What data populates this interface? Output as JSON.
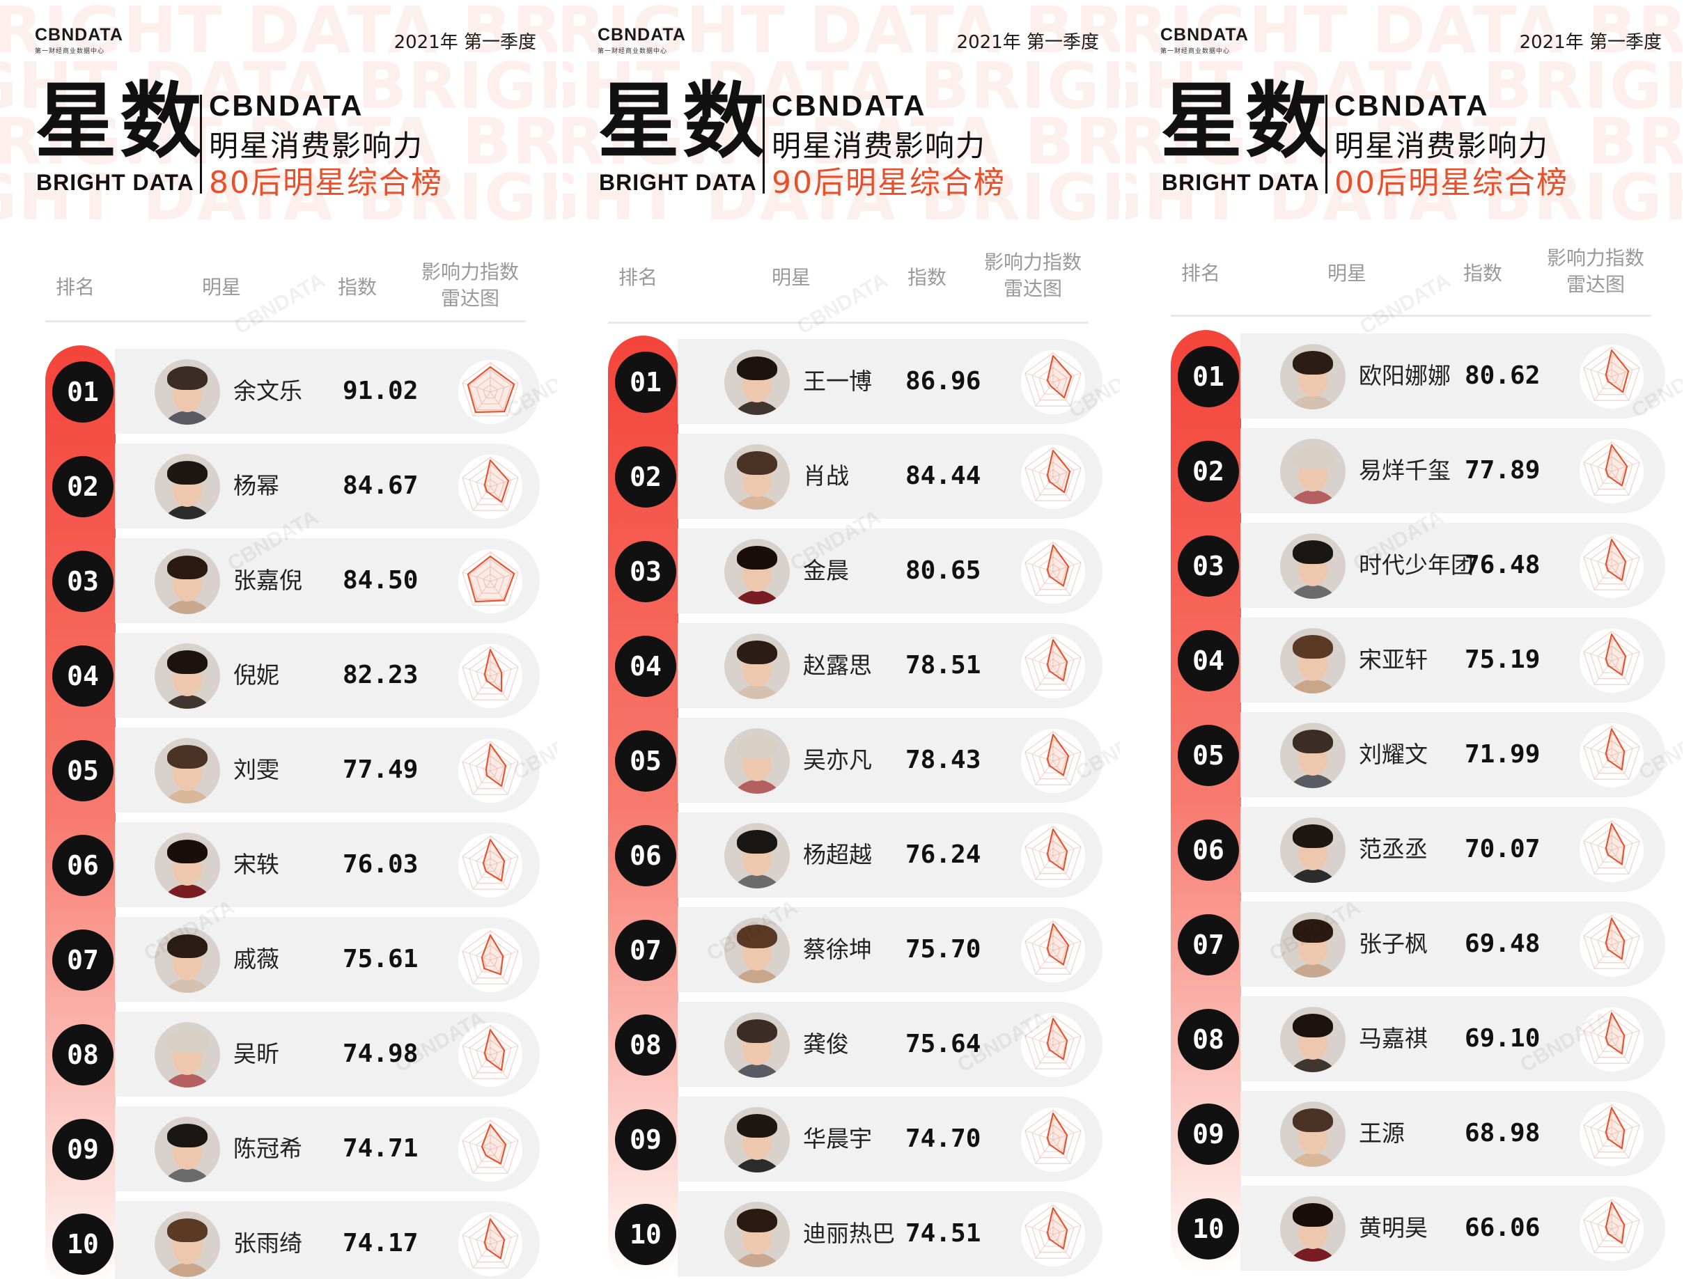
{
  "logo": {
    "name": "CBNDATA",
    "sub": "第一财经商业数据中心"
  },
  "season": "2021年 第一季度",
  "big_title": "星数",
  "bright_label": "BRIGHT DATA",
  "brand": "CBNDATA",
  "subtitle": "明星消费影响力",
  "background_text": "RIGHT DATA BRIGHT",
  "watermark": "CBNDATA",
  "headers": {
    "rank": "排名",
    "star": "明星",
    "index": "指数",
    "radar_line1": "影响力指数",
    "radar_line2": "雷达图"
  },
  "colors": {
    "accent": "#e8502b",
    "rank_bar": "#f4443a",
    "rank_circle": "#111111",
    "row_bg": "#f1f1f1"
  },
  "icons": {
    "avatar": "person-photo-icon",
    "radar": "radar-chart-icon"
  },
  "panels": [
    {
      "title": "80后明星综合榜",
      "rows": [
        {
          "rank": "01",
          "name": "余文乐",
          "score": "91.02",
          "radar": [
            0.85,
            0.85,
            0.82,
            0.85,
            0.8
          ]
        },
        {
          "rank": "02",
          "name": "杨幂",
          "score": "84.67",
          "radar": [
            0.9,
            0.65,
            0.65,
            0.2,
            0.2
          ]
        },
        {
          "rank": "03",
          "name": "张嘉倪",
          "score": "84.50",
          "radar": [
            0.85,
            0.85,
            0.8,
            0.85,
            0.8
          ]
        },
        {
          "rank": "04",
          "name": "倪妮",
          "score": "82.23",
          "radar": [
            0.9,
            0.4,
            0.65,
            0.2,
            0.2
          ]
        },
        {
          "rank": "05",
          "name": "刘雯",
          "score": "77.49",
          "radar": [
            0.9,
            0.55,
            0.65,
            0.2,
            0.15
          ]
        },
        {
          "rank": "06",
          "name": "宋轶",
          "score": "76.03",
          "radar": [
            0.88,
            0.5,
            0.65,
            0.25,
            0.25
          ]
        },
        {
          "rank": "07",
          "name": "戚薇",
          "score": "75.61",
          "radar": [
            0.85,
            0.45,
            0.6,
            0.35,
            0.3
          ]
        },
        {
          "rank": "08",
          "name": "吴昕",
          "score": "74.98",
          "radar": [
            0.85,
            0.5,
            0.65,
            0.2,
            0.2
          ]
        },
        {
          "rank": "09",
          "name": "陈冠希",
          "score": "74.71",
          "radar": [
            0.85,
            0.55,
            0.6,
            0.25,
            0.3
          ]
        },
        {
          "rank": "10",
          "name": "张雨绮",
          "score": "74.17",
          "radar": [
            0.85,
            0.5,
            0.6,
            0.2,
            0.2
          ]
        }
      ]
    },
    {
      "title": "90后明星综合榜",
      "rows": [
        {
          "rank": "01",
          "name": "王一博",
          "score": "86.96",
          "radar": [
            0.9,
            0.65,
            0.65,
            0.15,
            0.2
          ]
        },
        {
          "rank": "02",
          "name": "肖战",
          "score": "84.44",
          "radar": [
            0.9,
            0.6,
            0.65,
            0.2,
            0.2
          ]
        },
        {
          "rank": "03",
          "name": "金晨",
          "score": "80.65",
          "radar": [
            0.9,
            0.55,
            0.6,
            0.2,
            0.2
          ]
        },
        {
          "rank": "04",
          "name": "赵露思",
          "score": "78.51",
          "radar": [
            0.9,
            0.5,
            0.6,
            0.2,
            0.2
          ]
        },
        {
          "rank": "05",
          "name": "吴亦凡",
          "score": "78.43",
          "radar": [
            0.9,
            0.55,
            0.6,
            0.2,
            0.2
          ]
        },
        {
          "rank": "06",
          "name": "杨超越",
          "score": "76.24",
          "radar": [
            0.9,
            0.5,
            0.6,
            0.2,
            0.2
          ]
        },
        {
          "rank": "07",
          "name": "蔡徐坤",
          "score": "75.70",
          "radar": [
            0.9,
            0.55,
            0.6,
            0.2,
            0.2
          ]
        },
        {
          "rank": "08",
          "name": "龚俊",
          "score": "75.64",
          "radar": [
            0.9,
            0.5,
            0.6,
            0.2,
            0.2
          ]
        },
        {
          "rank": "09",
          "name": "华晨宇",
          "score": "74.70",
          "radar": [
            0.9,
            0.5,
            0.6,
            0.2,
            0.2
          ]
        },
        {
          "rank": "10",
          "name": "迪丽热巴",
          "score": "74.51",
          "radar": [
            0.9,
            0.5,
            0.6,
            0.2,
            0.2
          ]
        }
      ]
    },
    {
      "title": "00后明星综合榜",
      "rows": [
        {
          "rank": "01",
          "name": "欧阳娜娜",
          "score": "80.62",
          "radar": [
            0.9,
            0.6,
            0.65,
            0.2,
            0.2
          ]
        },
        {
          "rank": "02",
          "name": "易烊千玺",
          "score": "77.89",
          "radar": [
            0.9,
            0.55,
            0.6,
            0.2,
            0.2
          ]
        },
        {
          "rank": "03",
          "name": "时代少年团",
          "score": "76.48",
          "radar": [
            0.9,
            0.5,
            0.6,
            0.2,
            0.2
          ]
        },
        {
          "rank": "04",
          "name": "宋亚轩",
          "score": "75.19",
          "radar": [
            0.9,
            0.5,
            0.6,
            0.2,
            0.2
          ]
        },
        {
          "rank": "05",
          "name": "刘耀文",
          "score": "71.99",
          "radar": [
            0.9,
            0.45,
            0.6,
            0.2,
            0.2
          ]
        },
        {
          "rank": "06",
          "name": "范丞丞",
          "score": "70.07",
          "radar": [
            0.9,
            0.45,
            0.6,
            0.2,
            0.2
          ]
        },
        {
          "rank": "07",
          "name": "张子枫",
          "score": "69.48",
          "radar": [
            0.9,
            0.45,
            0.6,
            0.2,
            0.2
          ]
        },
        {
          "rank": "08",
          "name": "马嘉祺",
          "score": "69.10",
          "radar": [
            0.9,
            0.45,
            0.6,
            0.2,
            0.2
          ]
        },
        {
          "rank": "09",
          "name": "王源",
          "score": "68.98",
          "radar": [
            0.9,
            0.45,
            0.6,
            0.2,
            0.2
          ]
        },
        {
          "rank": "10",
          "name": "黄明昊",
          "score": "66.06",
          "radar": [
            0.9,
            0.45,
            0.6,
            0.2,
            0.2
          ]
        }
      ]
    }
  ]
}
